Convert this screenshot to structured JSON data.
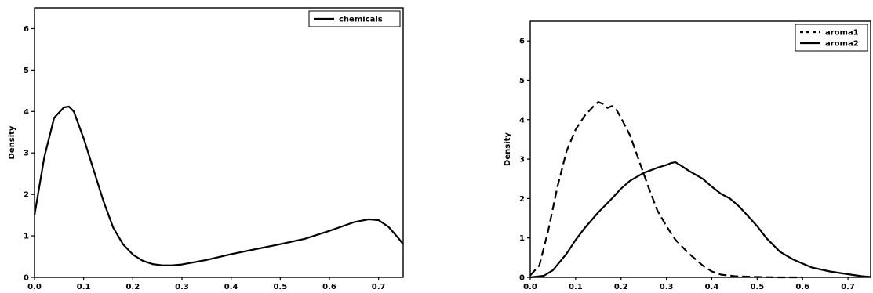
{
  "chart_data": [
    {
      "type": "line",
      "xlabel": "",
      "ylabel": "Density",
      "xlim": [
        0.0,
        0.75
      ],
      "ylim": [
        0,
        6.5
      ],
      "xticks": [
        "0.0",
        "0.1",
        "0.2",
        "0.3",
        "0.4",
        "0.5",
        "0.6",
        "0.7"
      ],
      "yticks": [
        "0",
        "1",
        "2",
        "3",
        "4",
        "5",
        "6"
      ],
      "grid": false,
      "legend_position": "top-right",
      "series": [
        {
          "name": "chemicals",
          "style": "solid",
          "color": "#000000",
          "x": [
            0.0,
            0.02,
            0.04,
            0.06,
            0.07,
            0.08,
            0.1,
            0.12,
            0.14,
            0.16,
            0.18,
            0.2,
            0.22,
            0.24,
            0.26,
            0.28,
            0.3,
            0.35,
            0.4,
            0.45,
            0.5,
            0.55,
            0.6,
            0.65,
            0.68,
            0.7,
            0.72,
            0.74,
            0.75
          ],
          "y": [
            1.5,
            2.9,
            3.85,
            4.1,
            4.12,
            4.0,
            3.35,
            2.6,
            1.85,
            1.2,
            0.8,
            0.55,
            0.4,
            0.32,
            0.29,
            0.29,
            0.31,
            0.42,
            0.56,
            0.68,
            0.8,
            0.93,
            1.12,
            1.33,
            1.4,
            1.38,
            1.22,
            0.95,
            0.8
          ]
        }
      ]
    },
    {
      "type": "line",
      "xlabel": "",
      "ylabel": "Density",
      "xlim": [
        0.0,
        0.75
      ],
      "ylim": [
        0,
        6.5
      ],
      "xticks": [
        "0.0",
        "0.1",
        "0.2",
        "0.3",
        "0.4",
        "0.5",
        "0.6",
        "0.7"
      ],
      "yticks": [
        "0",
        "1",
        "2",
        "3",
        "4",
        "5",
        "6"
      ],
      "grid": false,
      "legend_position": "top-right",
      "series": [
        {
          "name": "aroma1",
          "style": "dashed",
          "color": "#000000",
          "x": [
            0.0,
            0.02,
            0.04,
            0.06,
            0.08,
            0.1,
            0.12,
            0.14,
            0.15,
            0.16,
            0.17,
            0.18,
            0.19,
            0.2,
            0.22,
            0.24,
            0.26,
            0.28,
            0.3,
            0.32,
            0.35,
            0.38,
            0.4,
            0.42,
            0.45,
            0.5,
            0.55,
            0.6
          ],
          "y": [
            0.05,
            0.3,
            1.2,
            2.3,
            3.2,
            3.75,
            4.1,
            4.35,
            4.45,
            4.4,
            4.3,
            4.35,
            4.25,
            4.05,
            3.6,
            2.95,
            2.3,
            1.7,
            1.3,
            0.95,
            0.6,
            0.3,
            0.15,
            0.07,
            0.03,
            0.01,
            0.0,
            0.0
          ]
        },
        {
          "name": "aroma2",
          "style": "solid",
          "color": "#000000",
          "x": [
            0.0,
            0.03,
            0.05,
            0.08,
            0.1,
            0.12,
            0.15,
            0.18,
            0.2,
            0.22,
            0.25,
            0.28,
            0.3,
            0.31,
            0.32,
            0.33,
            0.35,
            0.38,
            0.4,
            0.42,
            0.44,
            0.46,
            0.48,
            0.5,
            0.52,
            0.55,
            0.58,
            0.62,
            0.66,
            0.7,
            0.73,
            0.75
          ],
          "y": [
            0.0,
            0.04,
            0.18,
            0.6,
            0.95,
            1.25,
            1.65,
            2.0,
            2.25,
            2.45,
            2.65,
            2.78,
            2.85,
            2.9,
            2.92,
            2.85,
            2.7,
            2.5,
            2.3,
            2.12,
            2.0,
            1.8,
            1.55,
            1.3,
            1.0,
            0.65,
            0.45,
            0.25,
            0.15,
            0.08,
            0.03,
            0.01
          ]
        }
      ]
    }
  ]
}
